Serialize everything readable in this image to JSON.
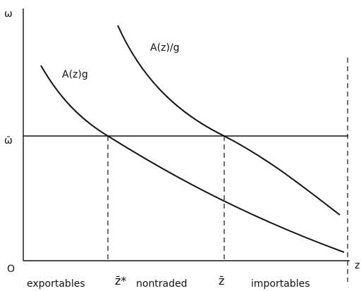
{
  "axes": {
    "y_label": "ω",
    "x_label": "z",
    "origin": "O",
    "omega_bar": "ω̄"
  },
  "curves": [
    {
      "label": "A(z)g"
    },
    {
      "label": "A(z)/g"
    }
  ],
  "regions": [
    "exportables",
    "nontraded",
    "importables"
  ],
  "markers": [
    "z̄*",
    "z̄"
  ]
}
